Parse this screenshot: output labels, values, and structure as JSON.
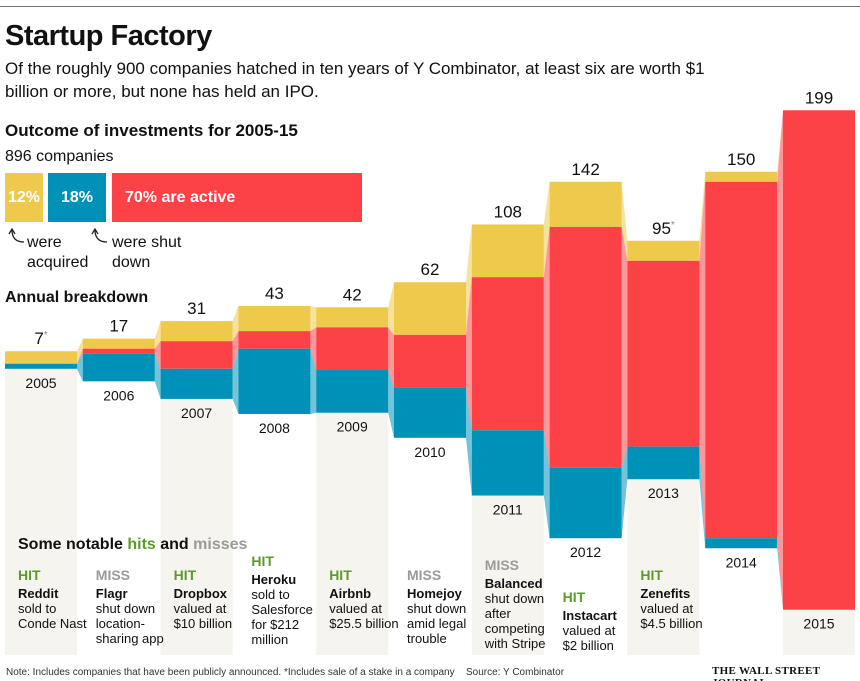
{
  "title": "Startup Factory",
  "subtitle": "Of the roughly 900 companies hatched in ten years of Y Combinator, at least six are worth $1 billion or more, but none has held an IPO.",
  "outcome": {
    "heading": "Outcome of investments for 2005-15",
    "total": "896 companies",
    "acquired": "12%",
    "shut": "18%",
    "active": "70% are active",
    "acquired_note": "were acquired",
    "shut_note": "were shut down",
    "acquired_pct": 12,
    "shut_pct": 18,
    "active_pct": 70
  },
  "annual_heading": "Annual breakdown",
  "colors": {
    "acquired": "#efc94c",
    "active": "#fd4247",
    "shut": "#0091b9",
    "hit": "#5b9a2c",
    "miss": "#9a9a9a",
    "panel": "#f5f4ee"
  },
  "chart_data": {
    "type": "bar",
    "stacked": true,
    "categories": [
      "2005",
      "2006",
      "2007",
      "2008",
      "2009",
      "2010",
      "2011",
      "2012",
      "2013",
      "2014",
      "2015"
    ],
    "totals_labels": [
      "7*",
      "17",
      "31",
      "43",
      "42",
      "62",
      "108",
      "142",
      "95*",
      "150",
      "199"
    ],
    "totals": [
      7,
      17,
      31,
      43,
      42,
      62,
      108,
      142,
      95,
      150,
      199
    ],
    "series": [
      {
        "key": "acquired",
        "values": [
          5,
          4,
          8,
          10,
          8,
          21,
          21,
          18,
          8,
          4,
          0
        ]
      },
      {
        "key": "active",
        "values": [
          0,
          2,
          11,
          7,
          17,
          21,
          61,
          96,
          74,
          142,
          199
        ]
      },
      {
        "key": "shut",
        "values": [
          2,
          11,
          12,
          26,
          17,
          20,
          26,
          28,
          13,
          4,
          0
        ]
      }
    ]
  },
  "hits_misses": {
    "heading_prefix": "Some notable ",
    "hits": "hits",
    "and": " and ",
    "misses": "misses",
    "items": [
      {
        "tag": "HIT",
        "company": "Reddit",
        "desc": "sold to Conde Nast"
      },
      {
        "tag": "MISS",
        "company": "Flagr",
        "desc": "shut down location-sharing app"
      },
      {
        "tag": "HIT",
        "company": "Dropbox",
        "desc": "valued at $10 billion"
      },
      {
        "tag": "HIT",
        "company": "Heroku",
        "desc": "sold to Salesforce for $212 million"
      },
      {
        "tag": "HIT",
        "company": "Airbnb",
        "desc": "valued at $25.5 billion"
      },
      {
        "tag": "MISS",
        "company": "Homejoy",
        "desc": "shut down amid legal trouble"
      },
      {
        "tag": "MISS",
        "company": "Balanced",
        "desc": "shut down after competing with Stripe"
      },
      {
        "tag": "HIT",
        "company": "Instacart",
        "desc": "valued at $2 billion"
      },
      {
        "tag": "HIT",
        "company": "Zenefits",
        "desc": "valued at $4.5 billion"
      }
    ]
  },
  "footnote": "Note: Includes companies that have been publicly announced.   *Includes sale of a stake in a company",
  "source": "Source: Y Combinator",
  "publisher": "THE WALL STREET JOURNAL."
}
